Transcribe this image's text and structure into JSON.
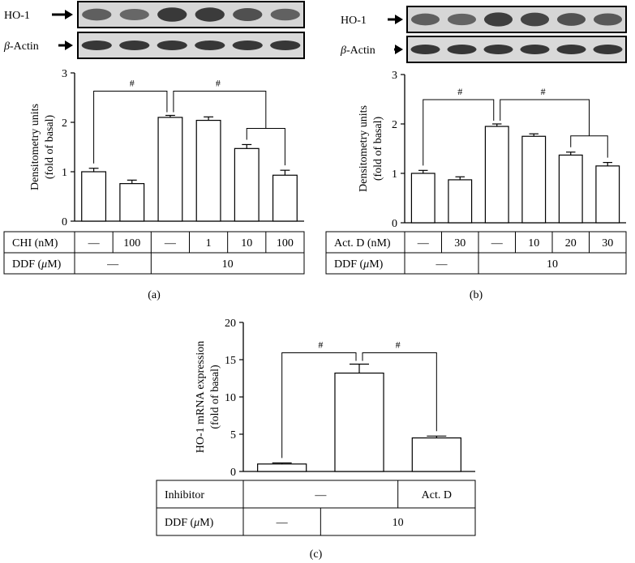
{
  "blots": {
    "a": {
      "protein": "HO-1",
      "control": "β-Actin",
      "control_prefix": "β",
      "control_suffix": "-Actin",
      "lanes": 6
    },
    "b": {
      "protein": "HO-1",
      "control": "β-Actin",
      "control_prefix": "β",
      "control_suffix": "-Actin",
      "lanes": 6
    }
  },
  "chart_data": [
    {
      "id": "a",
      "type": "bar",
      "panel_label": "(a)",
      "ylabel": "Densitometry units\n(fold of basal)",
      "ylabel_lines": [
        "Densitometry units",
        "(fold of basal)"
      ],
      "ylim": [
        0,
        3
      ],
      "yticks": [
        "0",
        "1",
        "2",
        "3"
      ],
      "values": [
        1.0,
        0.76,
        2.1,
        2.04,
        1.47,
        0.93
      ],
      "errors": [
        0.07,
        0.07,
        0.04,
        0.07,
        0.08,
        0.1
      ],
      "significance": [
        {
          "from": 0,
          "to": 2,
          "label": "#"
        },
        {
          "from": 2,
          "to": [
            4,
            5
          ],
          "label": "#"
        }
      ],
      "conditions": [
        {
          "label": "CHI (nM)",
          "label_prefix": "CHI (nM)",
          "cells": [
            "—",
            "100",
            "—",
            "1",
            "10",
            "100"
          ]
        },
        {
          "label": "DDF (μM)",
          "label_prefix": "DDF (",
          "label_unit": "μ",
          "label_suffix": "M)",
          "groups": [
            {
              "span": [
                0,
                1
              ],
              "text": "—"
            },
            {
              "span": [
                2,
                5
              ],
              "text": "10"
            }
          ]
        }
      ]
    },
    {
      "id": "b",
      "type": "bar",
      "panel_label": "(b)",
      "ylabel": "Densitometry units\n(fold of basal)",
      "ylabel_lines": [
        "Densitometry units",
        "(fold of basal)"
      ],
      "ylim": [
        0,
        3
      ],
      "yticks": [
        "0",
        "1",
        "2",
        "3"
      ],
      "values": [
        1.0,
        0.87,
        1.95,
        1.75,
        1.37,
        1.15
      ],
      "errors": [
        0.06,
        0.06,
        0.05,
        0.05,
        0.06,
        0.07
      ],
      "significance": [
        {
          "from": 0,
          "to": 2,
          "label": "#"
        },
        {
          "from": 2,
          "to": [
            4,
            5
          ],
          "label": "#"
        }
      ],
      "conditions": [
        {
          "label": "Act. D (nM)",
          "label_prefix": "Act. D (nM)",
          "cells": [
            "—",
            "30",
            "—",
            "10",
            "20",
            "30"
          ]
        },
        {
          "label": "DDF (μM)",
          "label_prefix": "DDF (",
          "label_unit": "μ",
          "label_suffix": "M)",
          "groups": [
            {
              "span": [
                0,
                1
              ],
              "text": "—"
            },
            {
              "span": [
                2,
                5
              ],
              "text": "10"
            }
          ]
        }
      ]
    },
    {
      "id": "c",
      "type": "bar",
      "panel_label": "(c)",
      "ylabel": "HO-1 mRNA expression\n(fold of basal)",
      "ylabel_lines": [
        "HO-1 mRNA expression",
        "(fold of basal)"
      ],
      "ylim": [
        0,
        20
      ],
      "yticks": [
        "0",
        "5",
        "10",
        "15",
        "20"
      ],
      "values": [
        1.0,
        13.2,
        4.5
      ],
      "errors": [
        0.15,
        1.2,
        0.25
      ],
      "significance": [
        {
          "from": 0,
          "to": 1,
          "label": "#"
        },
        {
          "from": 1,
          "to": 2,
          "label": "#"
        }
      ],
      "conditions": [
        {
          "label": "Inhibitor",
          "label_prefix": "Inhibitor",
          "groups": [
            {
              "span": [
                0,
                1
              ],
              "text": "—"
            },
            {
              "span": [
                2,
                2
              ],
              "text": "Act. D"
            }
          ]
        },
        {
          "label": "DDF (μM)",
          "label_prefix": "DDF (",
          "label_unit": "μ",
          "label_suffix": "M)",
          "groups": [
            {
              "span": [
                0,
                0
              ],
              "text": "—"
            },
            {
              "span": [
                1,
                2
              ],
              "text": "10"
            }
          ]
        }
      ]
    }
  ]
}
